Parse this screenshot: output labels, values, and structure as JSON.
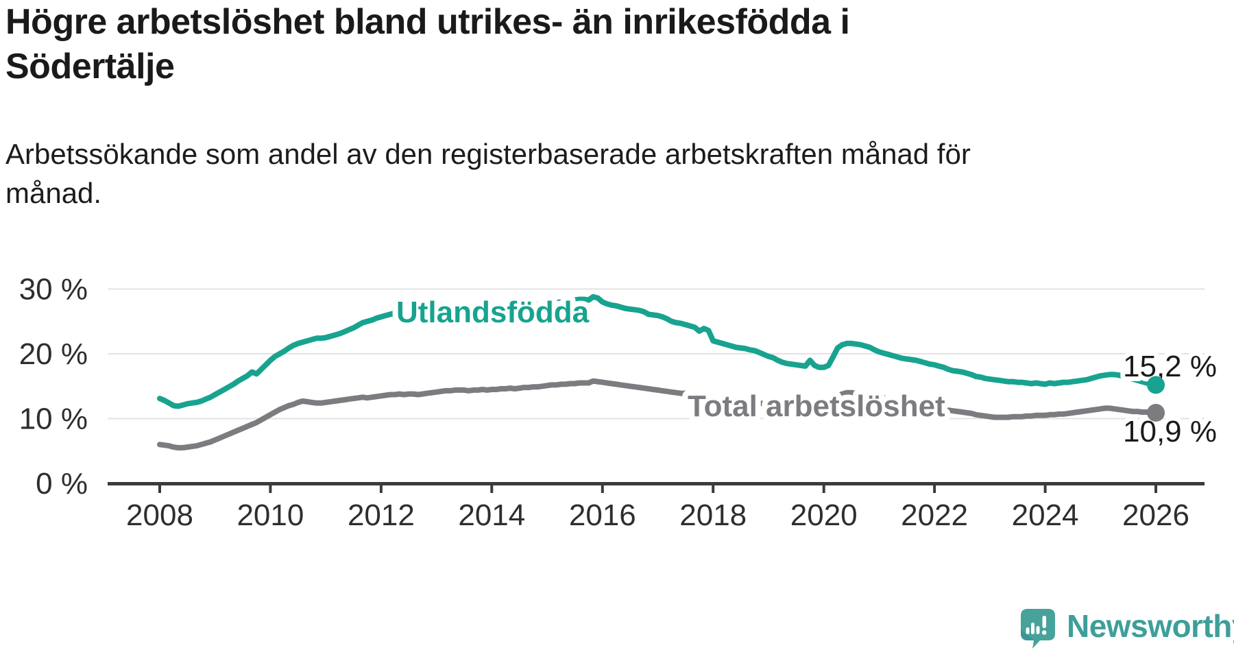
{
  "header": {
    "title_lines": [
      "Högre arbetslöshet bland utrikes- än inrikesfödda i",
      "Södertälje"
    ],
    "subtitle_lines": [
      "Arbetssökande som andel av den registerbaserade arbetskraften månad för",
      "månad."
    ]
  },
  "chart_data": {
    "type": "line",
    "x_unit": "month",
    "x_start": 2008.0,
    "x_end": 2026.0,
    "x_tick_labels": [
      "2008",
      "2010",
      "2012",
      "2014",
      "2016",
      "2018",
      "2020",
      "2022",
      "2024",
      "2026"
    ],
    "y_ticks": [
      30,
      20,
      10,
      0
    ],
    "y_tick_labels": [
      "30 %",
      "20 %",
      "10 %",
      "0 %"
    ],
    "ylim": [
      0,
      33
    ],
    "grid": "horizontal-only",
    "legend_position": "inline-labels",
    "series": [
      {
        "name": "Utlandsfödda",
        "color": "#17a38f",
        "end_label": "15,2 %",
        "end_value": 15.2,
        "values": [
          13.1,
          12.8,
          12.4,
          12.0,
          11.9,
          12.1,
          12.3,
          12.4,
          12.5,
          12.7,
          13.0,
          13.3,
          13.7,
          14.1,
          14.5,
          14.9,
          15.3,
          15.8,
          16.2,
          16.6,
          17.2,
          16.9,
          17.6,
          18.3,
          19.0,
          19.6,
          20.0,
          20.4,
          20.9,
          21.3,
          21.6,
          21.8,
          22.0,
          22.2,
          22.4,
          22.4,
          22.5,
          22.7,
          22.9,
          23.1,
          23.4,
          23.7,
          24.0,
          24.4,
          24.8,
          25.0,
          25.2,
          25.5,
          25.7,
          25.9,
          26.1,
          26.3,
          26.5,
          26.3,
          26.4,
          26.2,
          25.9,
          25.8,
          25.9,
          25.8,
          25.9,
          26.0,
          26.1,
          26.1,
          26.2,
          26.2,
          26.3,
          26.3,
          26.4,
          26.5,
          26.6,
          26.6,
          26.7,
          26.8,
          26.9,
          27.0,
          27.0,
          27.1,
          27.2,
          27.3,
          27.4,
          27.5,
          27.6,
          27.6,
          27.7,
          27.8,
          27.9,
          28.0,
          28.1,
          28.2,
          28.3,
          28.4,
          28.4,
          28.3,
          28.8,
          28.6,
          28.0,
          27.7,
          27.5,
          27.4,
          27.2,
          27.0,
          26.9,
          26.8,
          26.7,
          26.5,
          26.1,
          26.0,
          25.9,
          25.7,
          25.4,
          25.0,
          24.8,
          24.7,
          24.5,
          24.3,
          24.1,
          23.5,
          23.9,
          23.6,
          22.0,
          21.8,
          21.6,
          21.4,
          21.2,
          21.0,
          20.9,
          20.8,
          20.6,
          20.5,
          20.2,
          19.9,
          19.6,
          19.4,
          19.0,
          18.7,
          18.5,
          18.4,
          18.3,
          18.2,
          18.1,
          19.0,
          18.2,
          17.9,
          17.9,
          18.2,
          19.5,
          20.9,
          21.4,
          21.6,
          21.6,
          21.5,
          21.4,
          21.2,
          21.0,
          20.6,
          20.3,
          20.1,
          19.9,
          19.7,
          19.5,
          19.3,
          19.2,
          19.1,
          19.0,
          18.8,
          18.6,
          18.4,
          18.3,
          18.1,
          17.9,
          17.6,
          17.4,
          17.3,
          17.2,
          17.0,
          16.8,
          16.5,
          16.4,
          16.2,
          16.1,
          16.0,
          15.9,
          15.8,
          15.7,
          15.7,
          15.6,
          15.6,
          15.5,
          15.4,
          15.5,
          15.4,
          15.3,
          15.5,
          15.4,
          15.5,
          15.6,
          15.6,
          15.7,
          15.8,
          15.9,
          16.0,
          16.2,
          16.4,
          16.6,
          16.7,
          16.8,
          16.8,
          16.7,
          16.5,
          16.3,
          16.1,
          15.9,
          15.7,
          15.5,
          15.3,
          15.2
        ]
      },
      {
        "name": "Total arbetslöshet",
        "color": "#7c7c80",
        "end_label": "10,9 %",
        "end_value": 10.9,
        "values": [
          6.0,
          5.9,
          5.8,
          5.6,
          5.5,
          5.5,
          5.6,
          5.7,
          5.8,
          6.0,
          6.2,
          6.4,
          6.7,
          7.0,
          7.3,
          7.6,
          7.9,
          8.2,
          8.5,
          8.8,
          9.1,
          9.4,
          9.8,
          10.2,
          10.6,
          11.0,
          11.4,
          11.7,
          12.0,
          12.2,
          12.5,
          12.7,
          12.6,
          12.5,
          12.4,
          12.4,
          12.5,
          12.6,
          12.7,
          12.8,
          12.9,
          13.0,
          13.1,
          13.2,
          13.3,
          13.2,
          13.3,
          13.4,
          13.5,
          13.6,
          13.7,
          13.7,
          13.8,
          13.7,
          13.8,
          13.8,
          13.7,
          13.8,
          13.9,
          14.0,
          14.1,
          14.2,
          14.3,
          14.3,
          14.4,
          14.4,
          14.4,
          14.3,
          14.4,
          14.4,
          14.5,
          14.4,
          14.5,
          14.5,
          14.6,
          14.6,
          14.7,
          14.6,
          14.7,
          14.8,
          14.8,
          14.9,
          14.9,
          15.0,
          15.1,
          15.2,
          15.2,
          15.3,
          15.3,
          15.4,
          15.4,
          15.5,
          15.5,
          15.5,
          15.8,
          15.7,
          15.6,
          15.5,
          15.4,
          15.3,
          15.2,
          15.1,
          15.0,
          14.9,
          14.8,
          14.7,
          14.6,
          14.5,
          14.4,
          14.3,
          14.2,
          14.1,
          14.0,
          13.9,
          13.9,
          13.8,
          13.7,
          13.6,
          13.5,
          13.4,
          13.2,
          13.1,
          13.0,
          12.9,
          12.9,
          12.8,
          12.7,
          12.7,
          12.6,
          12.5,
          12.4,
          12.3,
          12.5,
          12.4,
          12.3,
          12.2,
          12.2,
          12.1,
          12.1,
          12.0,
          12.0,
          12.0,
          12.0,
          12.0,
          12.1,
          12.3,
          13.0,
          13.5,
          13.8,
          14.0,
          14.0,
          13.9,
          13.9,
          13.8,
          13.7,
          13.5,
          13.3,
          13.2,
          13.0,
          12.9,
          12.8,
          12.7,
          12.5,
          12.4,
          12.2,
          12.1,
          12.0,
          11.9,
          11.7,
          11.6,
          11.5,
          11.3,
          11.2,
          11.1,
          11.0,
          10.9,
          10.8,
          10.6,
          10.5,
          10.4,
          10.3,
          10.2,
          10.2,
          10.2,
          10.2,
          10.3,
          10.3,
          10.3,
          10.4,
          10.4,
          10.5,
          10.5,
          10.5,
          10.6,
          10.6,
          10.7,
          10.7,
          10.8,
          10.9,
          11.0,
          11.1,
          11.2,
          11.3,
          11.4,
          11.5,
          11.6,
          11.6,
          11.5,
          11.4,
          11.3,
          11.2,
          11.1,
          11.1,
          11.0,
          11.0,
          10.9,
          10.9
        ]
      }
    ]
  },
  "footer": {
    "brand": "Newsworthy",
    "logo_icon": "newsworthy-speech-bubble-chart-icon",
    "brand_color": "#3d9f99",
    "logo_bubble_color": "#47a29b"
  },
  "colors": {
    "background": "#ffffff",
    "title_text": "#1a1a1a",
    "axis_line": "#3b3b3b",
    "gridline": "#e3e3e3",
    "series_teal": "#17a38f",
    "series_gray": "#7c7c80"
  }
}
